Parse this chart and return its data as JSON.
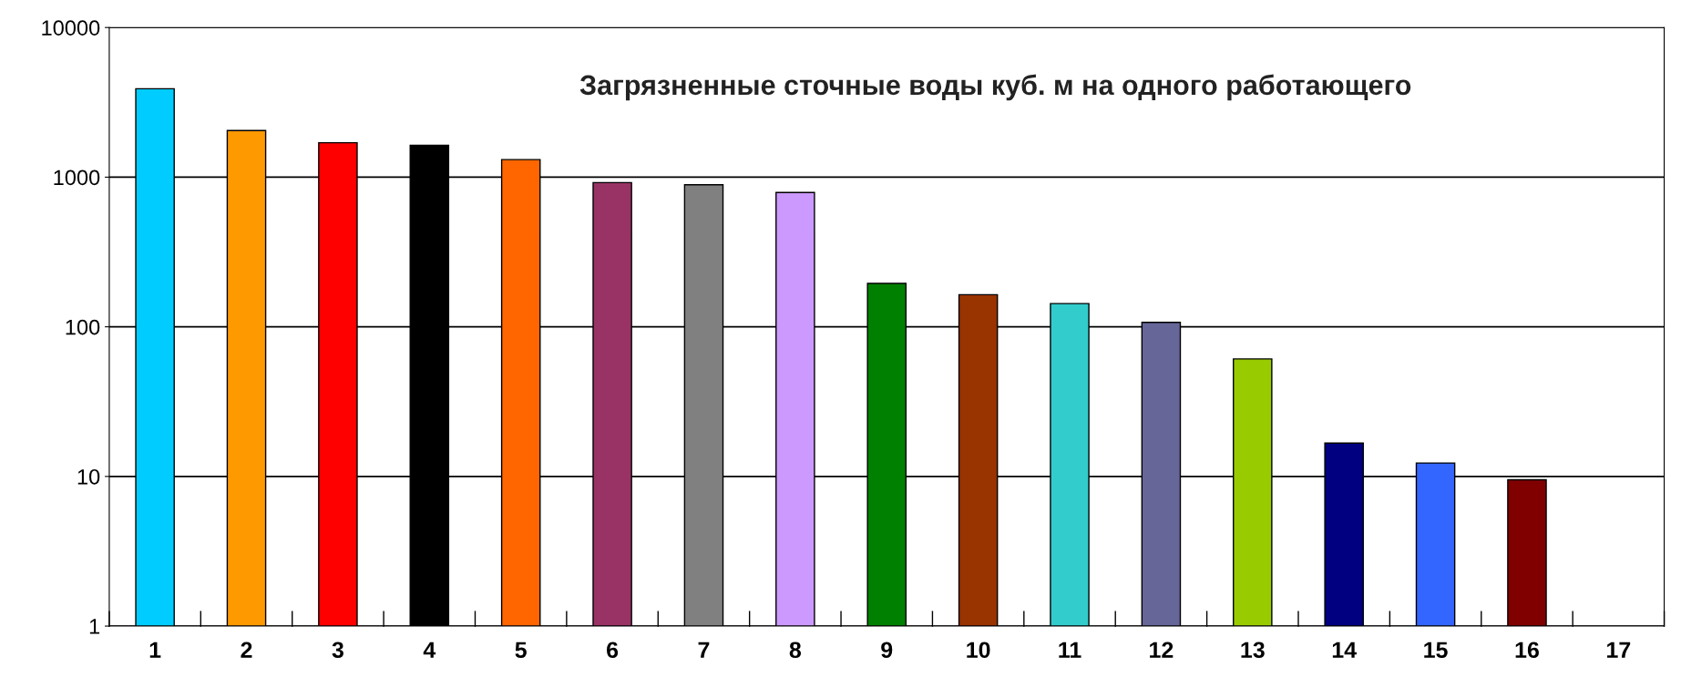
{
  "chart_data": {
    "type": "bar",
    "title": "Загрязненные сточные воды куб. м на одного работающего",
    "categories": [
      "1",
      "2",
      "3",
      "4",
      "5",
      "6",
      "7",
      "8",
      "9",
      "10",
      "11",
      "12",
      "13",
      "14",
      "15",
      "16",
      "17"
    ],
    "values": [
      3900,
      2050,
      1700,
      1630,
      1310,
      920,
      890,
      790,
      195,
      164,
      143,
      107,
      61,
      16.7,
      12.3,
      9.5,
      null
    ],
    "colors": [
      "#00ccff",
      "#ff9900",
      "#ff0000",
      "#000000",
      "#ff6600",
      "#993366",
      "#808080",
      "#cc99ff",
      "#008000",
      "#993300",
      "#33cccc",
      "#666699",
      "#99cc00",
      "#000080",
      "#3366ff",
      "#800000",
      "#ffffff"
    ],
    "log": "y",
    "ylim": [
      1,
      10000
    ],
    "yticks": [
      1,
      10,
      100,
      1000,
      10000
    ],
    "grid": "y",
    "legend": false
  }
}
